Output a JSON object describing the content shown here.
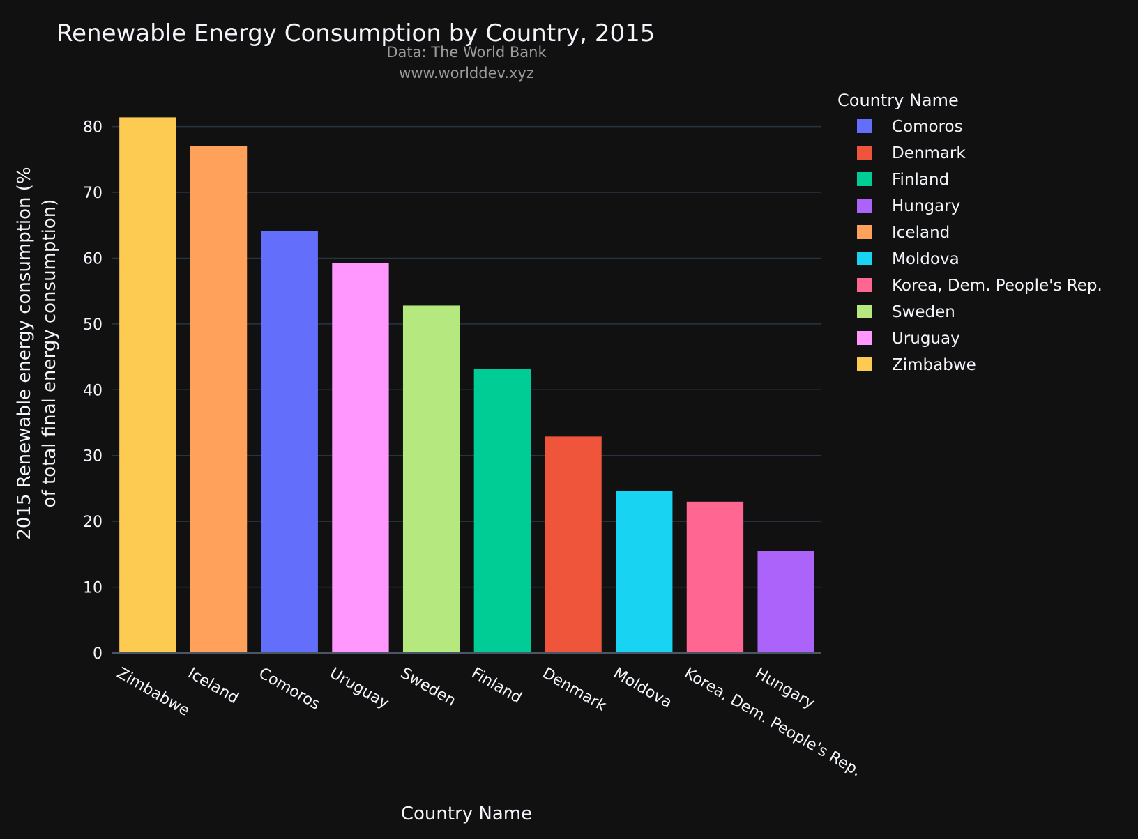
{
  "chart_data": {
    "type": "bar",
    "title": "Renewable Energy Consumption by Country, 2015",
    "source_lines": [
      "Data: The World Bank",
      "www.worlddev.xyz"
    ],
    "xlabel": "Country Name",
    "ylabel_lines": [
      "2015 Renewable energy consumption (%",
      "of total final energy consumption)"
    ],
    "ylim": [
      0,
      82.5
    ],
    "yticks": [
      0,
      10,
      20,
      30,
      40,
      50,
      60,
      70,
      80
    ],
    "grid": true,
    "categories": [
      "Zimbabwe",
      "Iceland",
      "Comoros",
      "Uruguay",
      "Sweden",
      "Finland",
      "Denmark",
      "Moldova",
      "Korea, Dem. People's Rep.",
      "Hungary"
    ],
    "values": [
      81.4,
      77.0,
      64.1,
      59.3,
      52.8,
      43.2,
      32.9,
      24.6,
      23.0,
      15.5
    ],
    "bar_colors": [
      "#FECB52",
      "#FFA15A",
      "#636EFA",
      "#FF97FF",
      "#B6E880",
      "#00CC96",
      "#EF553B",
      "#19D3F3",
      "#FF6692",
      "#AB63FA"
    ],
    "legend": {
      "title": "Country Name",
      "placement": "right",
      "entries": [
        {
          "name": "Comoros",
          "color": "#636EFA"
        },
        {
          "name": "Denmark",
          "color": "#EF553B"
        },
        {
          "name": "Finland",
          "color": "#00CC96"
        },
        {
          "name": "Hungary",
          "color": "#AB63FA"
        },
        {
          "name": "Iceland",
          "color": "#FFA15A"
        },
        {
          "name": "Moldova",
          "color": "#19D3F3"
        },
        {
          "name": "Korea, Dem. People's Rep.",
          "color": "#FF6692"
        },
        {
          "name": "Sweden",
          "color": "#B6E880"
        },
        {
          "name": "Uruguay",
          "color": "#FF97FF"
        },
        {
          "name": "Zimbabwe",
          "color": "#FECB52"
        }
      ]
    },
    "colors": {
      "background": "#111111",
      "grid": "#283442",
      "text": "#F2F5FA",
      "subtext": "#9A9A9A"
    }
  }
}
